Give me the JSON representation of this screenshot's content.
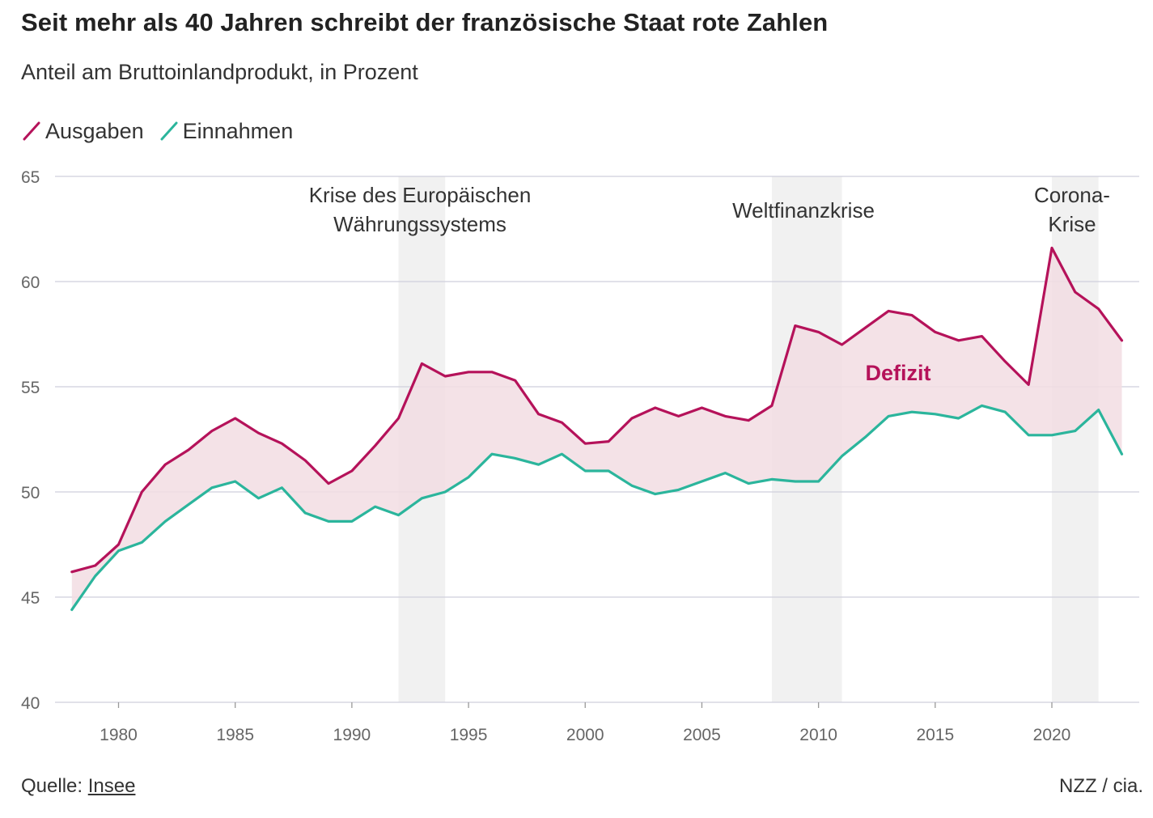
{
  "header": {
    "title": "Seit mehr als 40 Jahren schreibt der französische Staat rote Zahlen",
    "subtitle": "Anteil am Bruttoinlandprodukt, in Prozent"
  },
  "footer": {
    "source_label": "Quelle:",
    "source_link": "Insee",
    "credit": "NZZ / cia."
  },
  "colors": {
    "ausgaben": "#b5125a",
    "einnahmen": "#2bb59c",
    "deficit_fill": "#f2dde3",
    "crisis_band": "#f1f1f1",
    "grid": "#cfcfdc",
    "axis_text": "#666666",
    "annotation": "#333333"
  },
  "chart_data": {
    "type": "line",
    "title": "Seit mehr als 40 Jahren schreibt der französische Staat rote Zahlen",
    "subtitle": "Anteil am Bruttoinlandprodukt, in Prozent",
    "xlim": [
      1978,
      2023
    ],
    "ylim": [
      40,
      65
    ],
    "yticks": [
      40,
      45,
      50,
      55,
      60,
      65
    ],
    "xticks": [
      1980,
      1985,
      1990,
      1995,
      2000,
      2005,
      2010,
      2015,
      2020
    ],
    "grid": true,
    "legend_placement": "top-left",
    "x": [
      1978,
      1979,
      1980,
      1981,
      1982,
      1983,
      1984,
      1985,
      1986,
      1987,
      1988,
      1989,
      1990,
      1991,
      1992,
      1993,
      1994,
      1995,
      1996,
      1997,
      1998,
      1999,
      2000,
      2001,
      2002,
      2003,
      2004,
      2005,
      2006,
      2007,
      2008,
      2009,
      2010,
      2011,
      2012,
      2013,
      2014,
      2015,
      2016,
      2017,
      2018,
      2019,
      2020,
      2021,
      2022,
      2023
    ],
    "series": [
      {
        "name": "Ausgaben",
        "color": "#b5125a",
        "values": [
          46.2,
          46.5,
          47.5,
          50.0,
          51.3,
          52.0,
          52.9,
          53.5,
          52.8,
          52.3,
          51.5,
          50.4,
          51.0,
          52.2,
          53.5,
          56.1,
          55.5,
          55.7,
          55.7,
          55.3,
          53.7,
          53.3,
          52.3,
          52.4,
          53.5,
          54.0,
          53.6,
          54.0,
          53.6,
          53.4,
          54.1,
          57.9,
          57.6,
          57.0,
          57.8,
          58.6,
          58.4,
          57.6,
          57.2,
          57.4,
          56.2,
          55.1,
          61.6,
          59.5,
          58.7,
          57.2
        ]
      },
      {
        "name": "Einnahmen",
        "color": "#2bb59c",
        "values": [
          44.4,
          46.0,
          47.2,
          47.6,
          48.6,
          49.4,
          50.2,
          50.5,
          49.7,
          50.2,
          49.0,
          48.6,
          48.6,
          49.3,
          48.9,
          49.7,
          50.0,
          50.7,
          51.8,
          51.6,
          51.3,
          51.8,
          51.0,
          51.0,
          50.3,
          49.9,
          50.1,
          50.5,
          50.9,
          50.4,
          50.6,
          50.5,
          50.5,
          51.7,
          52.6,
          53.6,
          53.8,
          53.7,
          53.5,
          54.1,
          53.8,
          52.7,
          52.7,
          52.9,
          53.9,
          51.8
        ]
      }
    ],
    "area_between_label": "Defizit",
    "shaded_periods": [
      {
        "start": 1992,
        "end": 1994,
        "label_lines": [
          "Krise des Europäischen",
          "Währungssystems"
        ]
      },
      {
        "start": 2008,
        "end": 2011,
        "label_lines": [
          "Weltfinanzkrise"
        ]
      },
      {
        "start": 2020,
        "end": 2022,
        "label_lines": [
          "Corona-",
          "Krise"
        ]
      }
    ]
  }
}
